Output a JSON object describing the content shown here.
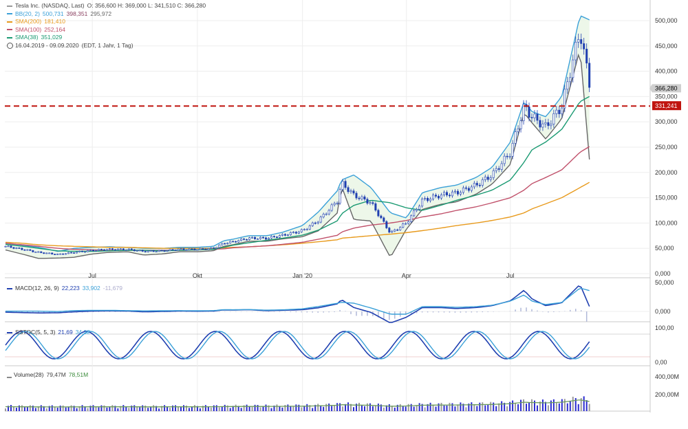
{
  "header": {
    "instrument": "Tesla Inc. (NASDAQ, Last)",
    "ohlc": "O: 356,600  H: 369,000  L: 341,510  C: 366,280",
    "period": "16.04.2019 - 09.09.2020",
    "period_note": "(EDT, 1 Jahr, 1 Tag)"
  },
  "legend": [
    {
      "name": "BB(20, 2)",
      "values": [
        "500,731",
        "398,351",
        "295,972"
      ],
      "color": "#3aa0d8"
    },
    {
      "name": "SMA(200)",
      "values": [
        "181,410"
      ],
      "color": "#e89a1c"
    },
    {
      "name": "SMA(100)",
      "values": [
        "252,164"
      ],
      "color": "#c0506a"
    },
    {
      "name": "SMA(38)",
      "values": [
        "351,029"
      ],
      "color": "#1a9a72"
    }
  ],
  "price_tags": {
    "last": "366,280",
    "level": "331,241"
  },
  "macd": {
    "label": "MACD(12, 26, 9)",
    "values": [
      "22,223",
      "33,902",
      "-11,679"
    ],
    "axis": [
      "50,000",
      "0,000"
    ]
  },
  "sstoc": {
    "label": "SSTOC(5, 5, 3)",
    "values": [
      "21,69",
      "34,32"
    ],
    "axis": [
      "100,00",
      "0,00"
    ]
  },
  "volume": {
    "label": "Volume(28)",
    "values": [
      "79,47M",
      "78,51M"
    ],
    "axis": [
      "400,00M",
      "200,00M"
    ]
  },
  "chart_data": {
    "type": "line",
    "title": "Tesla Inc. (NASDAQ, Last)",
    "x_ticks": [
      "Jul",
      "Okt",
      "Jan '20",
      "Apr",
      "Jul"
    ],
    "y_ticks": [
      "500,000",
      "450,000",
      "400,000",
      "350,000",
      "300,000",
      "250,000",
      "200,000",
      "150,000",
      "100,000",
      "50,000",
      "0,000"
    ],
    "ylim": [
      0,
      520
    ],
    "horizontal_line": 331.241,
    "x": [
      "2019-04-16",
      "2019-05-01",
      "2019-05-15",
      "2019-06-01",
      "2019-06-15",
      "2019-07-01",
      "2019-07-15",
      "2019-08-01",
      "2019-08-15",
      "2019-09-01",
      "2019-09-15",
      "2019-10-01",
      "2019-10-15",
      "2019-10-24",
      "2019-11-01",
      "2019-11-15",
      "2019-12-01",
      "2019-12-15",
      "2020-01-01",
      "2020-01-15",
      "2020-02-01",
      "2020-02-04",
      "2020-02-15",
      "2020-03-01",
      "2020-03-18",
      "2020-04-01",
      "2020-04-15",
      "2020-05-01",
      "2020-05-15",
      "2020-06-01",
      "2020-06-15",
      "2020-07-01",
      "2020-07-13",
      "2020-07-20",
      "2020-08-01",
      "2020-08-15",
      "2020-08-31",
      "2020-09-09"
    ],
    "series": [
      {
        "name": "Tesla Inc.",
        "values": [
          54,
          48,
          42,
          38,
          42,
          46,
          48,
          48,
          44,
          45,
          48,
          48,
          50,
          60,
          63,
          70,
          70,
          76,
          85,
          105,
          145,
          180,
          155,
          140,
          80,
          100,
          145,
          155,
          160,
          175,
          195,
          240,
          330,
          310,
          290,
          330,
          480,
          366
        ]
      },
      {
        "name": "BB(20, 2)",
        "values": [
          60,
          56,
          52,
          44,
          50,
          52,
          53,
          52,
          50,
          50,
          52,
          52,
          54,
          65,
          68,
          75,
          75,
          82,
          95,
          122,
          165,
          185,
          195,
          170,
          120,
          110,
          160,
          170,
          175,
          190,
          210,
          260,
          340,
          320,
          310,
          350,
          510,
          500.731
        ]
      },
      {
        "name": "SMA(200)",
        "values": [
          62,
          60,
          57,
          55,
          54,
          53,
          52,
          52,
          51,
          50,
          50,
          50,
          50,
          51,
          52,
          53,
          55,
          57,
          60,
          63,
          67,
          70,
          72,
          75,
          78,
          81,
          85,
          90,
          95,
          100,
          105,
          112,
          120,
          128,
          138,
          150,
          170,
          181.41
        ]
      },
      {
        "name": "SMA(100)",
        "values": [
          60,
          57,
          54,
          50,
          48,
          47,
          46,
          46,
          46,
          46,
          46,
          47,
          48,
          49,
          51,
          53,
          55,
          58,
          62,
          68,
          76,
          82,
          90,
          96,
          100,
          105,
          112,
          118,
          125,
          132,
          140,
          150,
          165,
          178,
          190,
          205,
          240,
          252.164
        ]
      },
      {
        "name": "SMA(38)",
        "values": [
          58,
          54,
          50,
          45,
          44,
          44,
          45,
          46,
          46,
          45,
          46,
          47,
          48,
          52,
          56,
          61,
          66,
          70,
          76,
          86,
          105,
          118,
          135,
          145,
          140,
          130,
          125,
          135,
          145,
          155,
          165,
          185,
          220,
          245,
          260,
          285,
          340,
          351.029
        ]
      }
    ]
  }
}
